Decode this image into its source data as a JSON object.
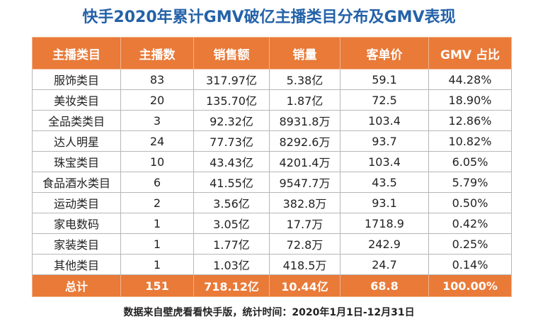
{
  "header": {
    "title": "快手2020年累计GMV破亿主播类目分布及GMV表现"
  },
  "table": {
    "columns": [
      "主播类目",
      "主播数",
      "销售额",
      "销量",
      "客单价",
      "GMV 占比"
    ],
    "rows": [
      [
        "服饰类目",
        "83",
        "317.97亿",
        "5.38亿",
        "59.1",
        "44.28%"
      ],
      [
        "美妆类目",
        "20",
        "135.70亿",
        "1.87亿",
        "72.5",
        "18.90%"
      ],
      [
        "全品类类目",
        "3",
        "92.32亿",
        "8931.8万",
        "103.4",
        "12.86%"
      ],
      [
        "达人明星",
        "24",
        "77.73亿",
        "8292.6万",
        "93.7",
        "10.82%"
      ],
      [
        "珠宝类目",
        "10",
        "43.43亿",
        "4201.4万",
        "103.4",
        "6.05%"
      ],
      [
        "食品酒水类目",
        "6",
        "41.55亿",
        "9547.7万",
        "43.5",
        "5.79%"
      ],
      [
        "运动类目",
        "2",
        "3.56亿",
        "382.8万",
        "93.1",
        "0.50%"
      ],
      [
        "家电数码",
        "1",
        "3.05亿",
        "17.7万",
        "1718.9",
        "0.42%"
      ],
      [
        "家装类目",
        "1",
        "1.77亿",
        "72.8万",
        "242.9",
        "0.25%"
      ],
      [
        "其他类目",
        "1",
        "1.03亿",
        "418.5万",
        "24.7",
        "0.14%"
      ]
    ],
    "total": [
      "总计",
      "151",
      "718.12亿",
      "10.44亿",
      "68.8",
      "100.00%"
    ]
  },
  "footer": {
    "note": "数据来自壁虎看看快手版，统计时间：2020年1月1日-12月31日"
  }
}
